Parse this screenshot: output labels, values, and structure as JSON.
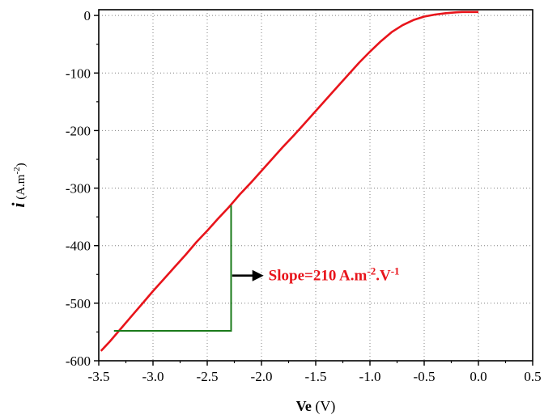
{
  "chart_data": {
    "type": "line",
    "xlabel": {
      "main": "Ve",
      "unit": " (V)"
    },
    "ylabel": {
      "main": "i",
      "unit": " (A.m",
      "sup": "-2",
      "close": ")"
    },
    "xlim": [
      -3.5,
      0.5
    ],
    "ylim": [
      -600,
      10
    ],
    "x_ticks": [
      -3.5,
      -3.0,
      -2.5,
      -2.0,
      -1.5,
      -1.0,
      -0.5,
      0.0,
      0.5
    ],
    "x_tick_labels": [
      "-3.5",
      "-3.0",
      "-2.5",
      "-2.0",
      "-1.5",
      "-1.0",
      "-0.5",
      "0.0",
      "0.5"
    ],
    "y_ticks": [
      0,
      -100,
      -200,
      -300,
      -400,
      -500,
      -600
    ],
    "y_tick_labels": [
      "0",
      "-100",
      "-200",
      "-300",
      "-400",
      "-500",
      "-600"
    ],
    "grid": true,
    "series": [
      {
        "color": "#e8141b",
        "x": [
          -3.48,
          -3.4,
          -3.3,
          -3.2,
          -3.1,
          -3.0,
          -2.9,
          -2.8,
          -2.7,
          -2.6,
          -2.5,
          -2.4,
          -2.3,
          -2.2,
          -2.1,
          -2.0,
          -1.9,
          -1.8,
          -1.7,
          -1.6,
          -1.5,
          -1.4,
          -1.3,
          -1.2,
          -1.1,
          -1.0,
          -0.9,
          -0.8,
          -0.7,
          -0.6,
          -0.5,
          -0.4,
          -0.3,
          -0.2,
          -0.15,
          -0.1,
          -0.05,
          0.0
        ],
        "y": [
          -583,
          -567,
          -545,
          -523,
          -501,
          -479,
          -458,
          -437,
          -416,
          -394,
          -374,
          -353,
          -333,
          -311,
          -291,
          -270,
          -249,
          -228,
          -208,
          -187,
          -166,
          -145,
          -124,
          -103,
          -82,
          -63,
          -45,
          -29,
          -17,
          -8,
          -2,
          1.5,
          4,
          5.5,
          6,
          6,
          6,
          6
        ]
      }
    ],
    "annotation": {
      "text": "Slope=210 A.m",
      "sup1": "-2",
      "mid": ".V",
      "sup2": "-1",
      "color": "#e8141b"
    },
    "slope_triangle": {
      "color": "#1a7a1a",
      "x_start": -3.36,
      "x_corner": -2.28,
      "y_bottom": -548,
      "y_top": -330
    },
    "arrow": {
      "x_from": -2.27,
      "x_to": -1.98,
      "y": -452
    }
  }
}
